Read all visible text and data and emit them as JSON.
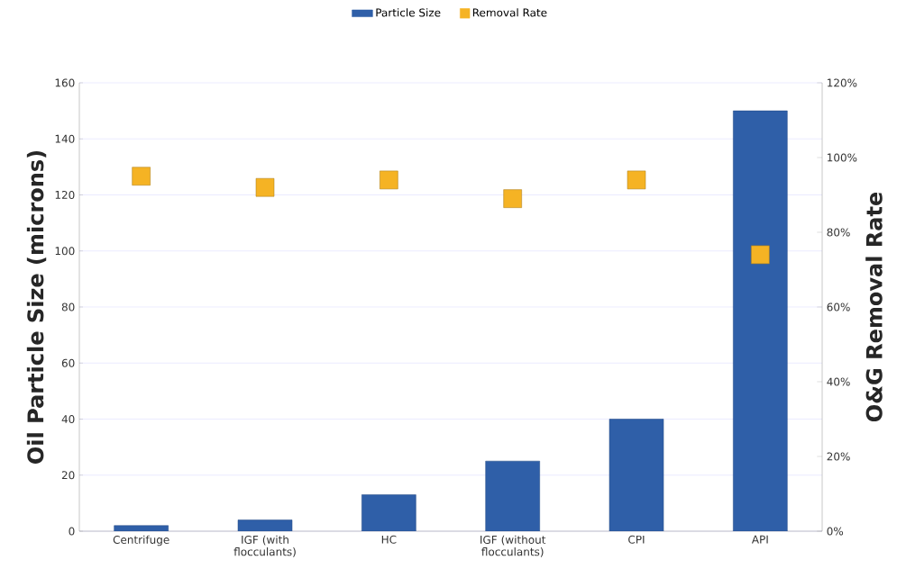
{
  "chart_data": {
    "type": "bar",
    "categories": [
      "Centrifuge",
      "IGF (with flocculants)",
      "HC",
      "IGF (without flocculants)",
      "CPI",
      "API"
    ],
    "series": [
      {
        "name": "Particle Size",
        "color": "#2f5fa8",
        "values": [
          2,
          4,
          13,
          25,
          40,
          150
        ]
      },
      {
        "name": "Removal Rate",
        "color": "#f5b324",
        "type": "scatter",
        "axis": "y2",
        "marker": "square",
        "values": [
          95,
          92,
          94,
          89,
          94,
          74
        ]
      }
    ],
    "ylabel": "Oil Particle Size (microns)",
    "y2label": "O&G Removal Rate",
    "ylim": [
      0,
      160
    ],
    "yticks": [
      0,
      20,
      40,
      60,
      80,
      100,
      120,
      140,
      160
    ],
    "y2lim": [
      0,
      120
    ],
    "y2ticks": [
      {
        "value": 0,
        "label": "0%"
      },
      {
        "value": 20,
        "label": "20%"
      },
      {
        "value": 40,
        "label": "40%"
      },
      {
        "value": 60,
        "label": "60%"
      },
      {
        "value": 80,
        "label": "80%"
      },
      {
        "value": 100,
        "label": "100%"
      },
      {
        "value": 120,
        "label": "120%"
      }
    ],
    "grid": "y",
    "legend": "top"
  }
}
